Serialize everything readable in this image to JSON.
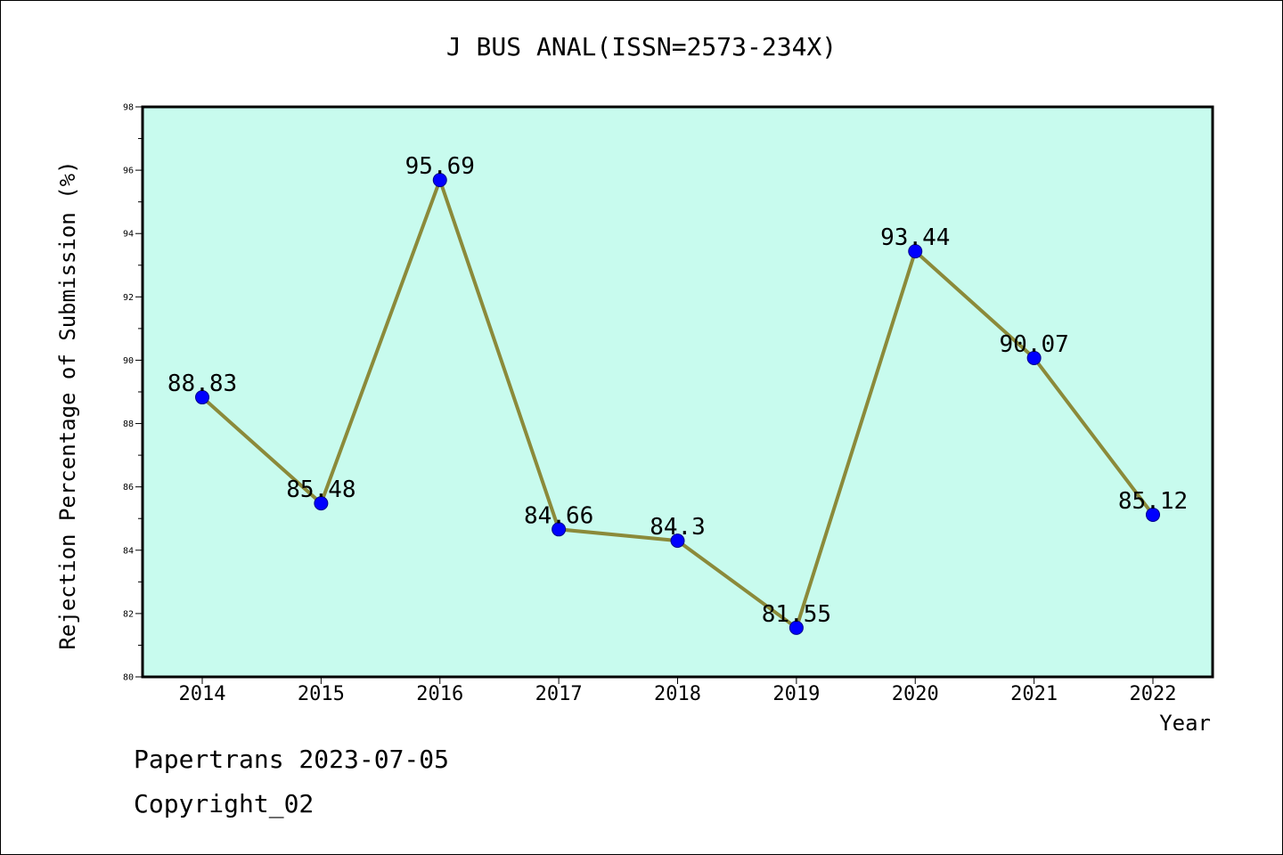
{
  "chart_data": {
    "type": "line",
    "title": "J BUS ANAL(ISSN=2573-234X)",
    "xlabel": "Year",
    "ylabel": "Rejection Percentage of Submission (%)",
    "categories": [
      "2014",
      "2015",
      "2016",
      "2017",
      "2018",
      "2019",
      "2020",
      "2021",
      "2022"
    ],
    "series": [
      {
        "values": [
          88.83,
          85.48,
          95.69,
          84.66,
          84.3,
          81.55,
          93.44,
          90.07,
          85.12
        ],
        "data_labels": [
          "88.83",
          "85.48",
          "95.69",
          "84.66",
          "84.3",
          "81.55",
          "93.44",
          "90.07",
          "85.12"
        ]
      }
    ],
    "ylim": [
      80,
      98
    ],
    "y_ticks": [
      "80",
      "82",
      "84",
      "86",
      "88",
      "90",
      "92",
      "94",
      "96",
      "98"
    ],
    "grid": false,
    "colors": {
      "plot_background": "#c8fbee",
      "line": "#8b8a3a",
      "marker": "#0000ff"
    }
  },
  "footer": {
    "date_text": "Papertrans 2023-07-05",
    "copyright_text": "Copyright_02"
  }
}
